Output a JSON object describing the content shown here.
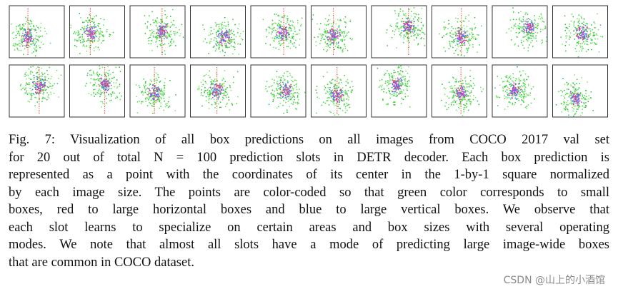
{
  "figure": {
    "caption_lines": [
      "Fig. 7: Visualization of all box predictions on all images from COCO 2017 val set",
      "for 20 out of total N = 100 prediction slots in DETR decoder. Each box prediction is",
      "represented as a point with the coordinates of its center in the 1-by-1 square normalized",
      "by each image size. The points are color-coded so that green color corresponds to small",
      "boxes, red to large horizontal boxes and blue to large vertical boxes. We observe that",
      "each slot learns to specialize on certain areas and box sizes with several operating",
      "modes. We note that almost all slots have a mode of predicting large image-wide boxes",
      "that are common in COCO dataset."
    ]
  },
  "watermark": "CSDN @山上的小酒馆"
}
